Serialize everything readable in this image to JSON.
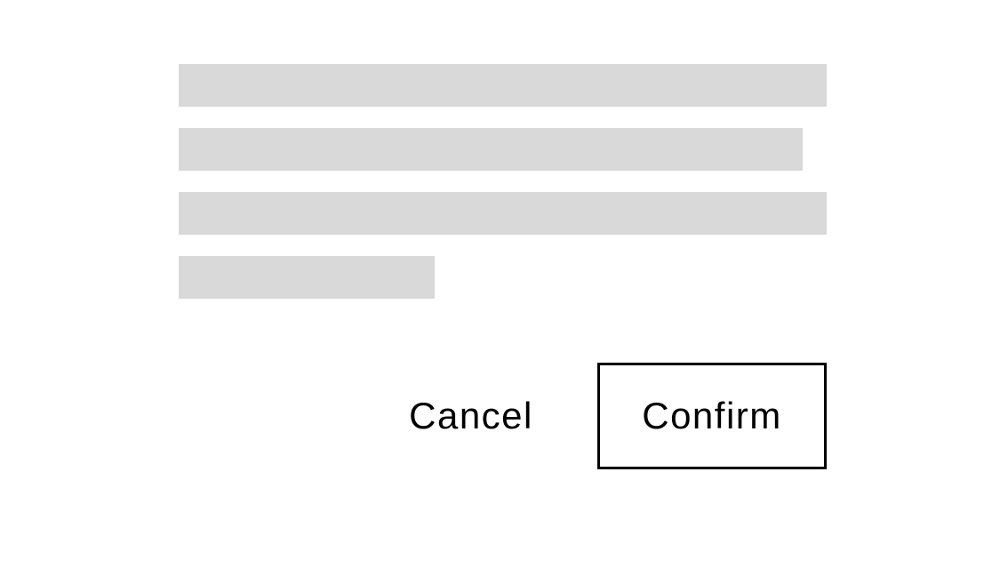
{
  "dialog": {
    "content_lines": 4,
    "placeholder_color": "#d9d9d9",
    "cancel_label": "Cancel",
    "confirm_label": "Confirm"
  }
}
